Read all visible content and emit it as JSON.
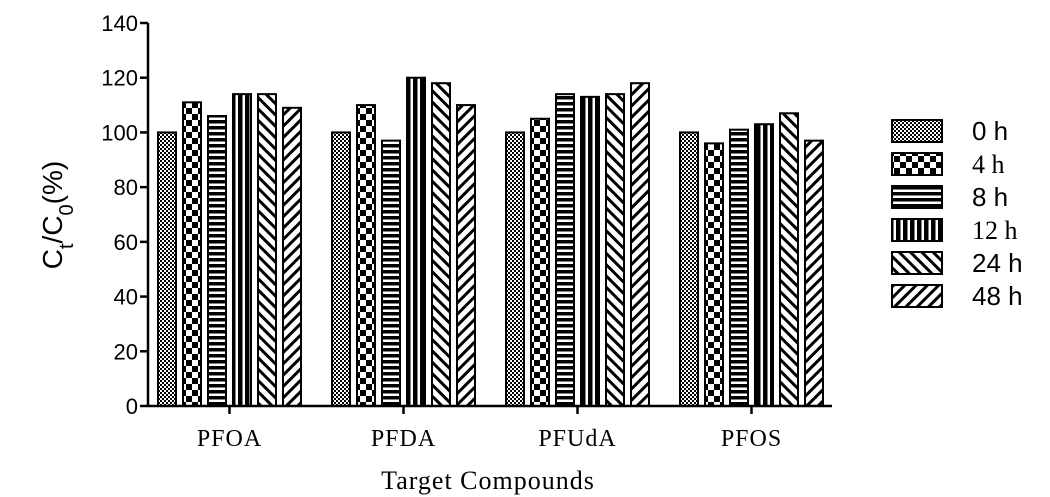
{
  "chart_data": {
    "type": "bar",
    "categories": [
      "PFOA",
      "PFDA",
      "PFUdA",
      "PFOS"
    ],
    "series": [
      {
        "name": "0 h",
        "values": [
          100,
          100,
          100,
          100
        ]
      },
      {
        "name": "4 h",
        "values": [
          111,
          110,
          105,
          96
        ]
      },
      {
        "name": "8 h",
        "values": [
          106,
          97,
          114,
          101
        ]
      },
      {
        "name": "12 h",
        "values": [
          114,
          120,
          113,
          103
        ]
      },
      {
        "name": "24 h",
        "values": [
          114,
          118,
          114,
          107
        ]
      },
      {
        "name": "48 h",
        "values": [
          109,
          110,
          118,
          97
        ]
      }
    ],
    "xlabel": "Target Compounds",
    "ylabel": "Ct/C0 (%)",
    "ylim": [
      0,
      140
    ],
    "yticks": [
      0,
      20,
      40,
      60,
      80,
      100,
      120,
      140
    ],
    "grid": false,
    "legend_position": "right",
    "patterns": [
      "dots",
      "checker",
      "horizontal",
      "vertical",
      "diagonal",
      "back-diagonal"
    ]
  }
}
